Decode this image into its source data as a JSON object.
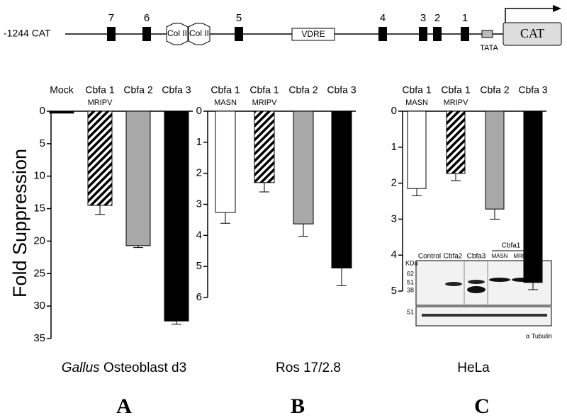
{
  "diagram": {
    "construct": "-1244 CAT",
    "sites": [
      "7",
      "6",
      "5",
      "4",
      "3",
      "2",
      "1"
    ],
    "col": [
      "Col II",
      "Col II"
    ],
    "vdre": "VDRE",
    "tata": "TATA",
    "cat": "CAT"
  },
  "y_axis_label": "Fold Suppression",
  "inset": {
    "lanes": [
      "Control",
      "Cbfa2",
      "Cbfa3"
    ],
    "group": "Cbfa1",
    "group_lanes": [
      "MASN",
      "MRIPV"
    ],
    "unit": "KDa",
    "markers": [
      "62",
      "51",
      "38"
    ],
    "tubulin_marker": "51",
    "tubulin": "α Tubulin"
  },
  "chart_data": [
    {
      "type": "bar",
      "panel": "A",
      "subtitle_italic": "Gallus",
      "subtitle": "Osteoblast d3",
      "categories": [
        "Mock",
        "Cbfa 1",
        "Cbfa 2",
        "Cbfa 3"
      ],
      "category_variants": [
        null,
        "MRIPV",
        null,
        null
      ],
      "values": [
        0.3,
        14.5,
        20.7,
        32.3
      ],
      "errors": [
        0,
        1.4,
        0.3,
        0.5
      ],
      "colors": [
        "#000000",
        "#000000",
        "#a8a8a8",
        "#000000"
      ],
      "patterns": [
        "solid",
        "hatch",
        "solid",
        "solid"
      ],
      "ylim": [
        0,
        35
      ],
      "yticks": [
        0,
        5,
        10,
        15,
        20,
        25,
        30,
        35
      ],
      "inverted": true
    },
    {
      "type": "bar",
      "panel": "B",
      "subtitle": "Ros 17/2.8",
      "categories": [
        "Cbfa 1",
        "Cbfa 1",
        "Cbfa 2",
        "Cbfa 3"
      ],
      "category_variants": [
        "MASN",
        "MRIPV",
        null,
        null
      ],
      "values": [
        3.26,
        2.3,
        3.63,
        5.05
      ],
      "errors": [
        0.35,
        0.3,
        0.4,
        0.57
      ],
      "colors": [
        "#ffffff",
        "#000000",
        "#a8a8a8",
        "#000000"
      ],
      "patterns": [
        "solid",
        "hatch",
        "solid",
        "solid"
      ],
      "ylim": [
        0,
        6
      ],
      "yticks": [
        0,
        1,
        2,
        3,
        4,
        5,
        6
      ],
      "inverted": true
    },
    {
      "type": "bar",
      "panel": "C",
      "subtitle": "HeLa",
      "categories": [
        "Cbfa 1",
        "Cbfa 1",
        "Cbfa 2",
        "Cbfa 3"
      ],
      "category_variants": [
        "MASN",
        "MRIPV",
        null,
        null
      ],
      "values": [
        2.15,
        1.73,
        2.72,
        4.76
      ],
      "errors": [
        0.2,
        0.2,
        0.28,
        0.2
      ],
      "colors": [
        "#ffffff",
        "#000000",
        "#a8a8a8",
        "#000000"
      ],
      "patterns": [
        "solid",
        "hatch",
        "solid",
        "solid"
      ],
      "ylim": [
        0,
        5
      ],
      "yticks": [
        0,
        1,
        2,
        3,
        4,
        5
      ],
      "inverted": true
    }
  ]
}
